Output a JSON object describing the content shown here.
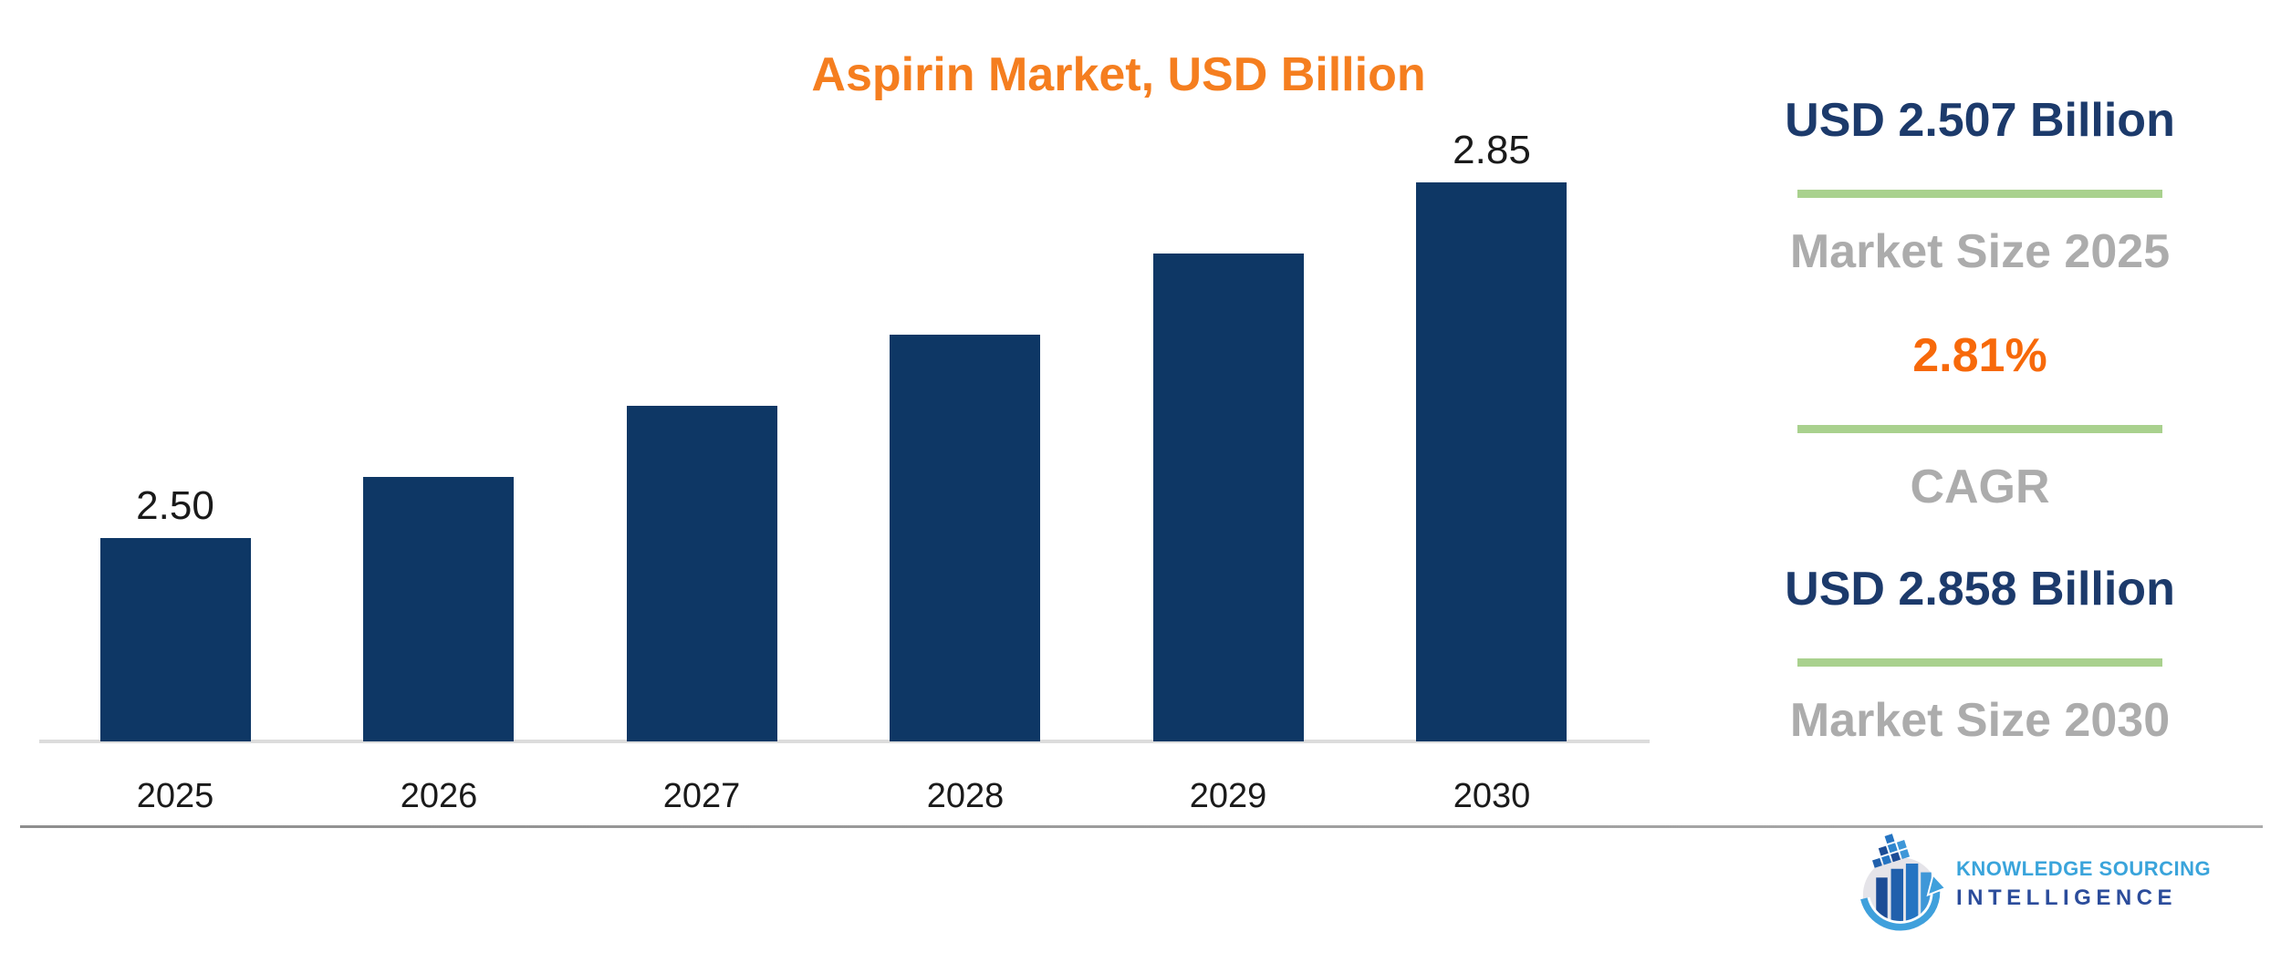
{
  "title": {
    "text": "Aspirin Market, USD Billion",
    "color": "#F57E1F"
  },
  "chart_data": {
    "type": "bar",
    "title": "Aspirin Market, USD Billion",
    "categories": [
      "2025",
      "2026",
      "2027",
      "2028",
      "2029",
      "2030"
    ],
    "values": [
      2.5,
      2.56,
      2.63,
      2.7,
      2.78,
      2.85
    ],
    "bar_labels": [
      "2.50",
      "",
      "",
      "",
      "",
      "2.85"
    ],
    "xlabel": "",
    "ylabel": "",
    "ylim": [
      2.3,
      2.9
    ],
    "grid": false,
    "legend": "none",
    "bar_color": "#0E3765",
    "label_color": "#1A1A1A",
    "axis_line_color": "#DCDCDC"
  },
  "stats": [
    {
      "value": "USD 2.507 Billion",
      "label": "Market Size 2025",
      "value_color": "#1C3A6B"
    },
    {
      "value": "2.81%",
      "label": "CAGR",
      "value_color": "#F7690A"
    },
    {
      "value": "USD 2.858 Billion",
      "label": "Market Size 2030",
      "value_color": "#1C3A6B"
    }
  ],
  "stats_style": {
    "label_color": "#ACACAC",
    "underline_color": "#A9D18E"
  },
  "logo": {
    "line1": "KNOWLEDGE SOURCING",
    "line1_color": "#3AA4DB",
    "line2": "INTELLIGENCE",
    "line2_color": "#2B4C9B"
  }
}
